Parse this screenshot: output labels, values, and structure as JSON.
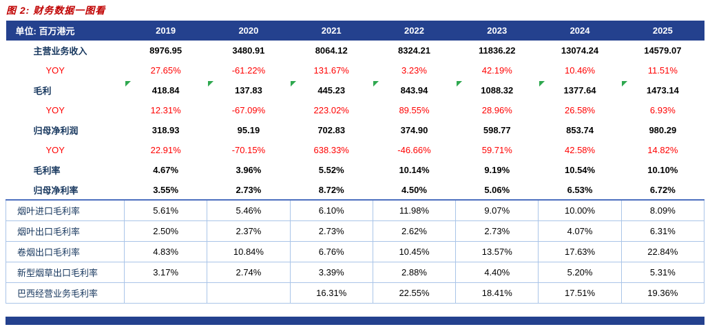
{
  "figure": {
    "title": "图 2: 财务数据一图看"
  },
  "table": {
    "unit_label": "单位: 百万港元",
    "years": [
      "2019",
      "2020",
      "2021",
      "2022",
      "2023",
      "2024",
      "2025"
    ],
    "rows": [
      {
        "label": "主营业务收入",
        "type": "main",
        "marker": false,
        "values": [
          "8976.95",
          "3480.91",
          "8064.12",
          "8324.21",
          "11836.22",
          "13074.24",
          "14579.07"
        ]
      },
      {
        "label": "YOY",
        "type": "yoy",
        "marker": false,
        "values": [
          "27.65%",
          "-61.22%",
          "131.67%",
          "3.23%",
          "42.19%",
          "10.46%",
          "11.51%"
        ]
      },
      {
        "label": "毛利",
        "type": "main",
        "marker": true,
        "values": [
          "418.84",
          "137.83",
          "445.23",
          "843.94",
          "1088.32",
          "1377.64",
          "1473.14"
        ]
      },
      {
        "label": "YOY",
        "type": "yoy",
        "marker": false,
        "values": [
          "12.31%",
          "-67.09%",
          "223.02%",
          "89.55%",
          "28.96%",
          "26.58%",
          "6.93%"
        ]
      },
      {
        "label": "归母净利润",
        "type": "main",
        "marker": false,
        "values": [
          "318.93",
          "95.19",
          "702.83",
          "374.90",
          "598.77",
          "853.74",
          "980.29"
        ]
      },
      {
        "label": "YOY",
        "type": "yoy",
        "marker": false,
        "values": [
          "22.91%",
          "-70.15%",
          "638.33%",
          "-46.66%",
          "59.71%",
          "42.58%",
          "14.82%"
        ]
      },
      {
        "label": "毛利率",
        "type": "main",
        "marker": false,
        "values": [
          "4.67%",
          "3.96%",
          "5.52%",
          "10.14%",
          "9.19%",
          "10.54%",
          "10.10%"
        ]
      },
      {
        "label": "归母净利率",
        "type": "main",
        "marker": false,
        "values": [
          "3.55%",
          "2.73%",
          "8.72%",
          "4.50%",
          "5.06%",
          "6.53%",
          "6.72%"
        ]
      },
      {
        "label": "烟叶进口毛利率",
        "type": "sub",
        "marker": false,
        "values": [
          "5.61%",
          "5.46%",
          "6.10%",
          "11.98%",
          "9.07%",
          "10.00%",
          "8.09%"
        ]
      },
      {
        "label": "烟叶出口毛利率",
        "type": "sub",
        "marker": false,
        "values": [
          "2.50%",
          "2.37%",
          "2.73%",
          "2.62%",
          "2.73%",
          "4.07%",
          "6.31%"
        ]
      },
      {
        "label": "卷烟出口毛利率",
        "type": "sub",
        "marker": false,
        "values": [
          "4.83%",
          "10.84%",
          "6.76%",
          "10.45%",
          "13.57%",
          "17.63%",
          "22.84%"
        ]
      },
      {
        "label": "新型烟草出口毛利率",
        "type": "sub",
        "marker": false,
        "values": [
          "3.17%",
          "2.74%",
          "3.39%",
          "2.88%",
          "4.40%",
          "5.20%",
          "5.31%"
        ]
      },
      {
        "label": "巴西经营业务毛利率",
        "type": "sub",
        "marker": false,
        "values": [
          "",
          "",
          "16.31%",
          "22.55%",
          "18.41%",
          "17.51%",
          "19.36%"
        ]
      }
    ]
  },
  "icons": {
    "cell_flag": "excel-flag-triangle-icon"
  },
  "colors": {
    "header_blue": "#24418E",
    "title_red": "#C00000",
    "yoy_red": "#FF0000",
    "label_navy": "#17375E",
    "grid_blue": "#A9C4E8",
    "section_line_blue": "#4C6FBF",
    "marker_green": "#2EA84F"
  }
}
